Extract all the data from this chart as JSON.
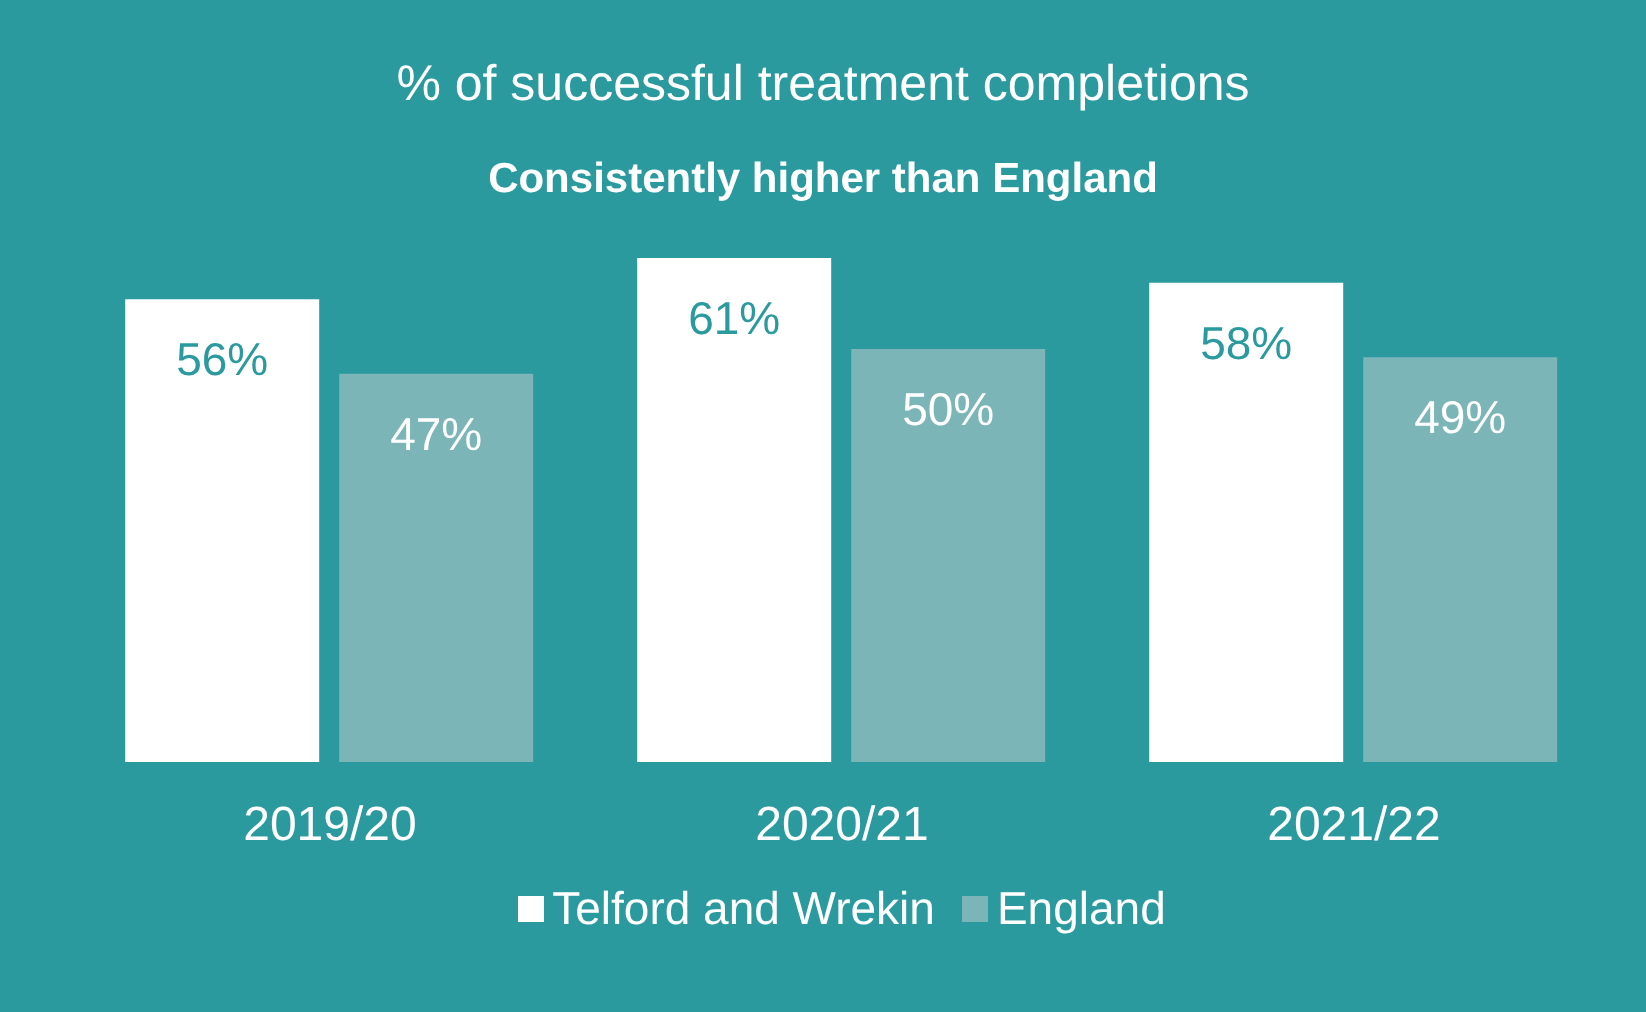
{
  "chart_data": {
    "type": "bar",
    "title": "% of successful treatment completions",
    "subtitle": "Consistently higher than England",
    "categories": [
      "2019/20",
      "2020/21",
      "2021/22"
    ],
    "legend": "bottom",
    "series": [
      {
        "name": "Telford and Wrekin",
        "color": "#ffffff",
        "values": [
          56,
          61,
          58
        ],
        "value_labels": [
          "56%",
          "61%",
          "58%"
        ]
      },
      {
        "name": "England",
        "color": "#7bb5b8",
        "values": [
          47,
          50,
          49
        ],
        "value_labels": [
          "47%",
          "50%",
          "49%"
        ]
      }
    ]
  }
}
